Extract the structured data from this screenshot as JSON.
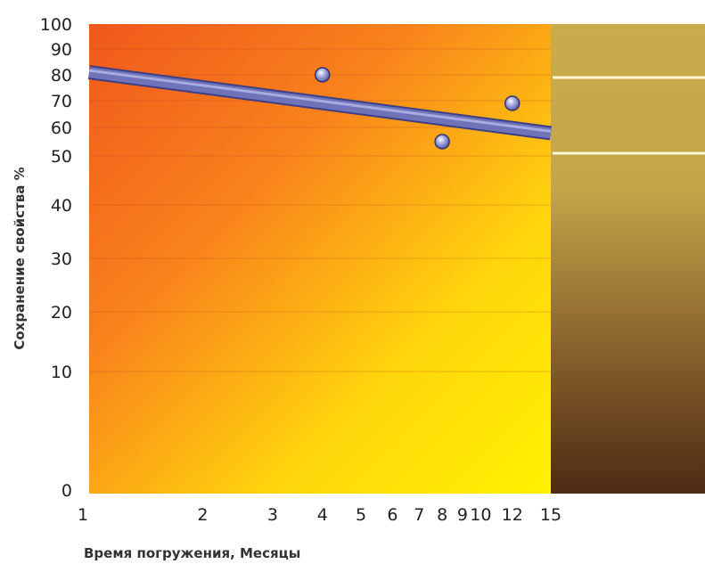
{
  "chart_data": {
    "type": "scatter",
    "xlabel": "Время погружения, Месяцы",
    "ylabel": "Сохранение свойства %",
    "x_scale": "log",
    "xlim": [
      1,
      15
    ],
    "x_ticks": [
      1,
      2,
      3,
      4,
      5,
      6,
      7,
      8,
      9,
      10,
      12,
      15
    ],
    "x_tick_labels": [
      "1",
      "2",
      "3",
      "4",
      "5",
      "6",
      "7",
      "8",
      "9",
      "10",
      "12",
      "15"
    ],
    "ylim": [
      0,
      100
    ],
    "y_ticks": [
      0,
      10,
      20,
      30,
      40,
      50,
      60,
      70,
      80,
      90,
      100
    ],
    "y_tick_labels": [
      "0",
      "10",
      "20",
      "30",
      "40",
      "50",
      "60",
      "70",
      "80",
      "90",
      "100"
    ],
    "grid": true,
    "points": [
      {
        "x": 4,
        "y": 80
      },
      {
        "x": 8,
        "y": 55
      },
      {
        "x": 12,
        "y": 69
      }
    ],
    "trend_line": {
      "x": [
        1,
        15
      ],
      "y": [
        81,
        58
      ]
    }
  },
  "colors": {
    "plot_orange": "#f2601a",
    "plot_yellow": "#ffe600",
    "trend_line": "#6f73b8",
    "marker": "#8a8ed0",
    "sample_gold": "#c9ad4c",
    "sample_brown": "#5a3418"
  }
}
